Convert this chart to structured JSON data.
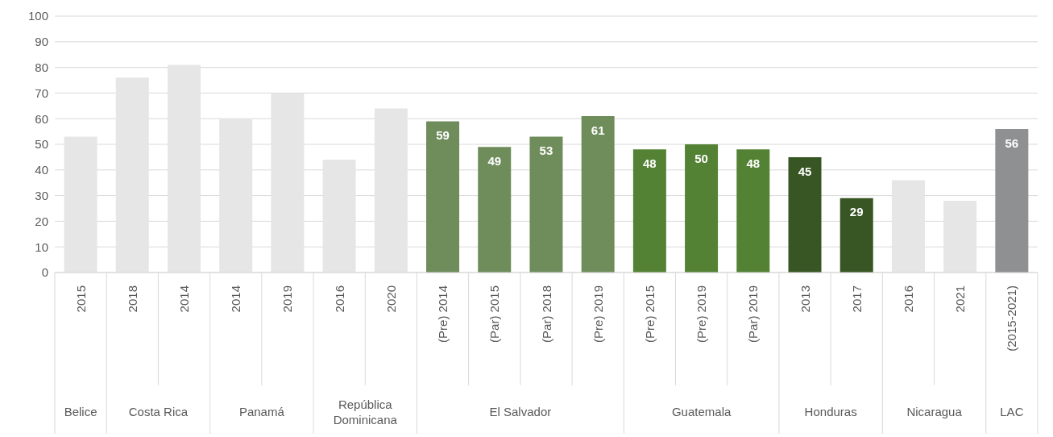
{
  "chart_data": {
    "type": "bar",
    "categories": [
      "2015",
      "2018",
      "2014",
      "2014",
      "2019",
      "2016",
      "2020",
      "(Pre) 2014",
      "(Par) 2015",
      "(Par) 2018",
      "(Pre) 2019",
      "(Pre) 2015",
      "(Pre) 2019",
      "(Par) 2019",
      "2013",
      "2017",
      "2016",
      "2021",
      "(2015-2021)"
    ],
    "values": [
      53,
      76,
      81,
      60,
      70,
      44,
      64,
      59,
      49,
      53,
      61,
      48,
      50,
      48,
      45,
      29,
      36,
      28,
      56
    ],
    "value_labels": [
      null,
      null,
      null,
      null,
      null,
      null,
      null,
      "59",
      "49",
      "53",
      "61",
      "48",
      "50",
      "48",
      "45",
      "29",
      null,
      null,
      "56"
    ],
    "colors": [
      "#e7e6e6",
      "#e7e6e6",
      "#e7e6e6",
      "#e7e6e6",
      "#e7e6e6",
      "#e7e6e6",
      "#e7e6e6",
      "#6f8c5b",
      "#6f8c5b",
      "#6f8c5b",
      "#6f8c5b",
      "#548235",
      "#548235",
      "#548235",
      "#375623",
      "#375623",
      "#e7e6e6",
      "#e7e6e6",
      "#8f9092"
    ],
    "annotations": [
      "Belice",
      "Costa Rica",
      "Panamá",
      "República Dominicana",
      "El Salvador",
      "Guatemala",
      "Honduras",
      "Nicaragua",
      "LAC"
    ],
    "ylim": [
      0,
      100
    ],
    "yticks": [
      0,
      10,
      20,
      30,
      40,
      50,
      60,
      70,
      80,
      90,
      100
    ],
    "grid": "y"
  }
}
